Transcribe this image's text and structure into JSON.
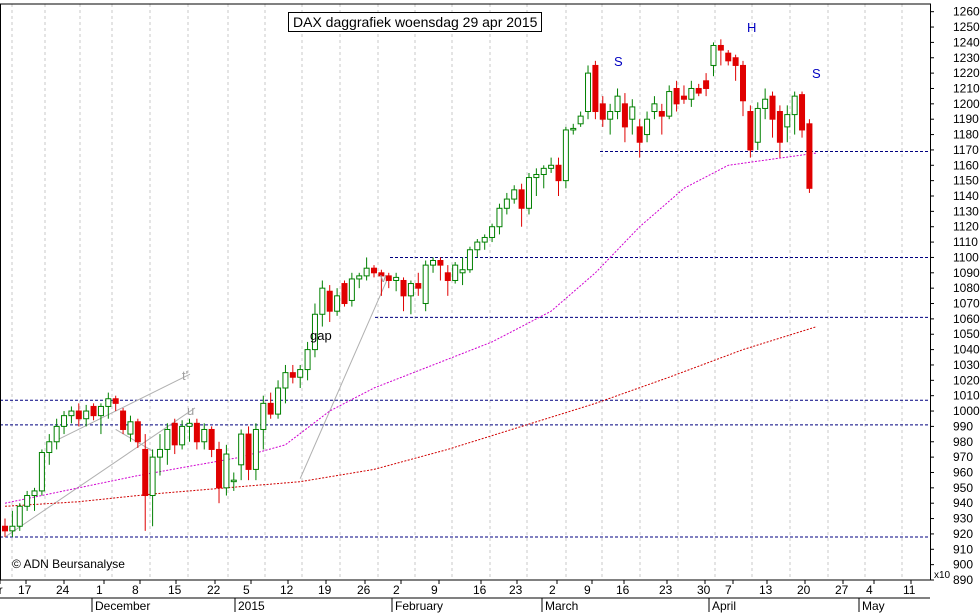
{
  "chart_data": {
    "type": "candlestick",
    "title": "DAX daggrafiek woensdag 29 apr 2015",
    "copyright": "© ADN Beursanalyse",
    "y_scale_note": "x10",
    "y_tick_labels": [
      "890",
      "900",
      "910",
      "920",
      "930",
      "940",
      "950",
      "960",
      "970",
      "980",
      "990",
      "1000",
      "1010",
      "1020",
      "1030",
      "1040",
      "1050",
      "1060",
      "1070",
      "1080",
      "1090",
      "1100",
      "1110",
      "1120",
      "1130",
      "1140",
      "1150",
      "1160",
      "1170",
      "1180",
      "1190",
      "1200",
      "1210",
      "1220",
      "1230",
      "1240",
      "1250",
      "1260"
    ],
    "ylim": [
      890,
      1265
    ],
    "x_day_labels": [
      "er",
      "17",
      "24",
      "1",
      "8",
      "15",
      "22",
      "5",
      "12",
      "19",
      "26",
      "2",
      "9",
      "16",
      "23",
      "2",
      "9",
      "16",
      "23",
      "30",
      "7",
      "13",
      "20",
      "27",
      "4",
      "11"
    ],
    "x_month_labels": [
      "December",
      "2015",
      "February",
      "March",
      "April",
      "May"
    ],
    "horizontal_levels": [
      918,
      991,
      1007,
      1061,
      1100,
      1169
    ],
    "annotations": [
      "gap",
      "t'",
      "u",
      "v",
      "S",
      "H",
      "S"
    ],
    "series": [
      {
        "name": "candles",
        "ohlc": [
          [
            925,
            930,
            918,
            922
          ],
          [
            922,
            935,
            918,
            925
          ],
          [
            925,
            940,
            922,
            938
          ],
          [
            938,
            948,
            935,
            945
          ],
          [
            945,
            950,
            935,
            948
          ],
          [
            948,
            975,
            945,
            973
          ],
          [
            973,
            985,
            965,
            980
          ],
          [
            980,
            995,
            975,
            990
          ],
          [
            990,
            1000,
            985,
            997
          ],
          [
            997,
            1003,
            992,
            1000
          ],
          [
            1000,
            1005,
            990,
            995
          ],
          [
            995,
            1004,
            990,
            1000
          ],
          [
            1003,
            1005,
            994,
            997
          ],
          [
            997,
            1005,
            985,
            1003
          ],
          [
            1003,
            1012,
            995,
            1008
          ],
          [
            1008,
            1010,
            1000,
            1005
          ],
          [
            1000,
            1002,
            985,
            988
          ],
          [
            985,
            997,
            980,
            993
          ],
          [
            993,
            995,
            976,
            980
          ],
          [
            975,
            985,
            922,
            945
          ],
          [
            945,
            975,
            925,
            970
          ],
          [
            970,
            985,
            958,
            975
          ],
          [
            975,
            992,
            965,
            988
          ],
          [
            992,
            995,
            972,
            978
          ],
          [
            978,
            994,
            975,
            990
          ],
          [
            990,
            995,
            980,
            992
          ],
          [
            992,
            995,
            975,
            980
          ],
          [
            980,
            992,
            975,
            988
          ],
          [
            988,
            990,
            970,
            975
          ],
          [
            975,
            980,
            940,
            950
          ],
          [
            950,
            978,
            945,
            972
          ],
          [
            955,
            960,
            948,
            955
          ],
          [
            965,
            988,
            955,
            985
          ],
          [
            985,
            990,
            955,
            962
          ],
          [
            962,
            992,
            955,
            988
          ],
          [
            988,
            1010,
            975,
            1005
          ],
          [
            1005,
            1012,
            995,
            998
          ],
          [
            998,
            1020,
            995,
            1015
          ],
          [
            1015,
            1030,
            1005,
            1025
          ],
          [
            1025,
            1030,
            1018,
            1022
          ],
          [
            1022,
            1030,
            1015,
            1027
          ],
          [
            1027,
            1045,
            1020,
            1040
          ],
          [
            1040,
            1070,
            1035,
            1063
          ],
          [
            1063,
            1085,
            1055,
            1080
          ],
          [
            1078,
            1082,
            1058,
            1065
          ],
          [
            1065,
            1080,
            1062,
            1075
          ],
          [
            1083,
            1085,
            1068,
            1070
          ],
          [
            1072,
            1090,
            1068,
            1086
          ],
          [
            1086,
            1090,
            1080,
            1088
          ],
          [
            1088,
            1100,
            1085,
            1093
          ],
          [
            1093,
            1095,
            1087,
            1090
          ],
          [
            1090,
            1092,
            1075,
            1088
          ],
          [
            1088,
            1090,
            1080,
            1085
          ],
          [
            1085,
            1090,
            1078,
            1087
          ],
          [
            1085,
            1087,
            1065,
            1075
          ],
          [
            1075,
            1085,
            1063,
            1083
          ],
          [
            1083,
            1090,
            1075,
            1080
          ],
          [
            1070,
            1098,
            1065,
            1095
          ],
          [
            1095,
            1100,
            1090,
            1098
          ],
          [
            1098,
            1100,
            1085,
            1095
          ],
          [
            1090,
            1095,
            1075,
            1085
          ],
          [
            1085,
            1097,
            1083,
            1095
          ],
          [
            1090,
            1100,
            1082,
            1092
          ],
          [
            1092,
            1107,
            1090,
            1105
          ],
          [
            1105,
            1112,
            1100,
            1110
          ],
          [
            1110,
            1115,
            1105,
            1113
          ],
          [
            1113,
            1122,
            1110,
            1120
          ],
          [
            1120,
            1135,
            1115,
            1132
          ],
          [
            1132,
            1142,
            1128,
            1138
          ],
          [
            1138,
            1147,
            1135,
            1144
          ],
          [
            1144,
            1148,
            1120,
            1132
          ],
          [
            1132,
            1155,
            1128,
            1152
          ],
          [
            1152,
            1158,
            1140,
            1154
          ],
          [
            1154,
            1160,
            1145,
            1158
          ],
          [
            1158,
            1165,
            1155,
            1160
          ],
          [
            1160,
            1165,
            1140,
            1150
          ],
          [
            1150,
            1185,
            1145,
            1183
          ],
          [
            1183,
            1187,
            1180,
            1184
          ],
          [
            1187,
            1195,
            1185,
            1192
          ],
          [
            1195,
            1225,
            1190,
            1220
          ],
          [
            1225,
            1228,
            1190,
            1195
          ],
          [
            1200,
            1205,
            1185,
            1190
          ],
          [
            1190,
            1200,
            1180,
            1195
          ],
          [
            1195,
            1210,
            1190,
            1205
          ],
          [
            1200,
            1207,
            1175,
            1185
          ],
          [
            1190,
            1203,
            1180,
            1198
          ],
          [
            1185,
            1190,
            1165,
            1175
          ],
          [
            1180,
            1195,
            1175,
            1190
          ],
          [
            1195,
            1205,
            1190,
            1200
          ],
          [
            1195,
            1200,
            1180,
            1192
          ],
          [
            1192,
            1212,
            1190,
            1208
          ],
          [
            1210,
            1215,
            1195,
            1200
          ],
          [
            1205,
            1212,
            1200,
            1203
          ],
          [
            1203,
            1215,
            1198,
            1210
          ],
          [
            1210,
            1213,
            1205,
            1207
          ],
          [
            1215,
            1220,
            1205,
            1210
          ],
          [
            1225,
            1240,
            1218,
            1238
          ],
          [
            1238,
            1242,
            1225,
            1235
          ],
          [
            1233,
            1235,
            1225,
            1228
          ],
          [
            1230,
            1232,
            1215,
            1225
          ],
          [
            1225,
            1228,
            1192,
            1202
          ],
          [
            1195,
            1199,
            1165,
            1170
          ],
          [
            1175,
            1201,
            1170,
            1197
          ],
          [
            1197,
            1210,
            1190,
            1203
          ],
          [
            1205,
            1208,
            1178,
            1190
          ],
          [
            1195,
            1199,
            1165,
            1175
          ],
          [
            1185,
            1199,
            1175,
            1193
          ],
          [
            1193,
            1208,
            1180,
            1205
          ],
          [
            1206,
            1208,
            1178,
            1183
          ],
          [
            1187,
            1190,
            1142,
            1145
          ]
        ]
      },
      {
        "name": "ma-short",
        "points": [
          [
            0,
            940
          ],
          [
            10,
            950
          ],
          [
            18,
            958
          ],
          [
            25,
            964
          ],
          [
            32,
            970
          ],
          [
            38,
            978
          ],
          [
            44,
            1000
          ],
          [
            50,
            1015
          ],
          [
            58,
            1030
          ],
          [
            66,
            1045
          ],
          [
            74,
            1065
          ],
          [
            80,
            1090
          ],
          [
            86,
            1120
          ],
          [
            92,
            1145
          ],
          [
            98,
            1160
          ],
          [
            104,
            1164
          ],
          [
            110,
            1168
          ]
        ]
      },
      {
        "name": "ma-long",
        "points": [
          [
            0,
            938
          ],
          [
            10,
            941
          ],
          [
            20,
            946
          ],
          [
            30,
            950
          ],
          [
            40,
            954
          ],
          [
            50,
            962
          ],
          [
            60,
            975
          ],
          [
            70,
            990
          ],
          [
            80,
            1005
          ],
          [
            90,
            1022
          ],
          [
            100,
            1040
          ],
          [
            110,
            1055
          ]
        ]
      }
    ]
  }
}
